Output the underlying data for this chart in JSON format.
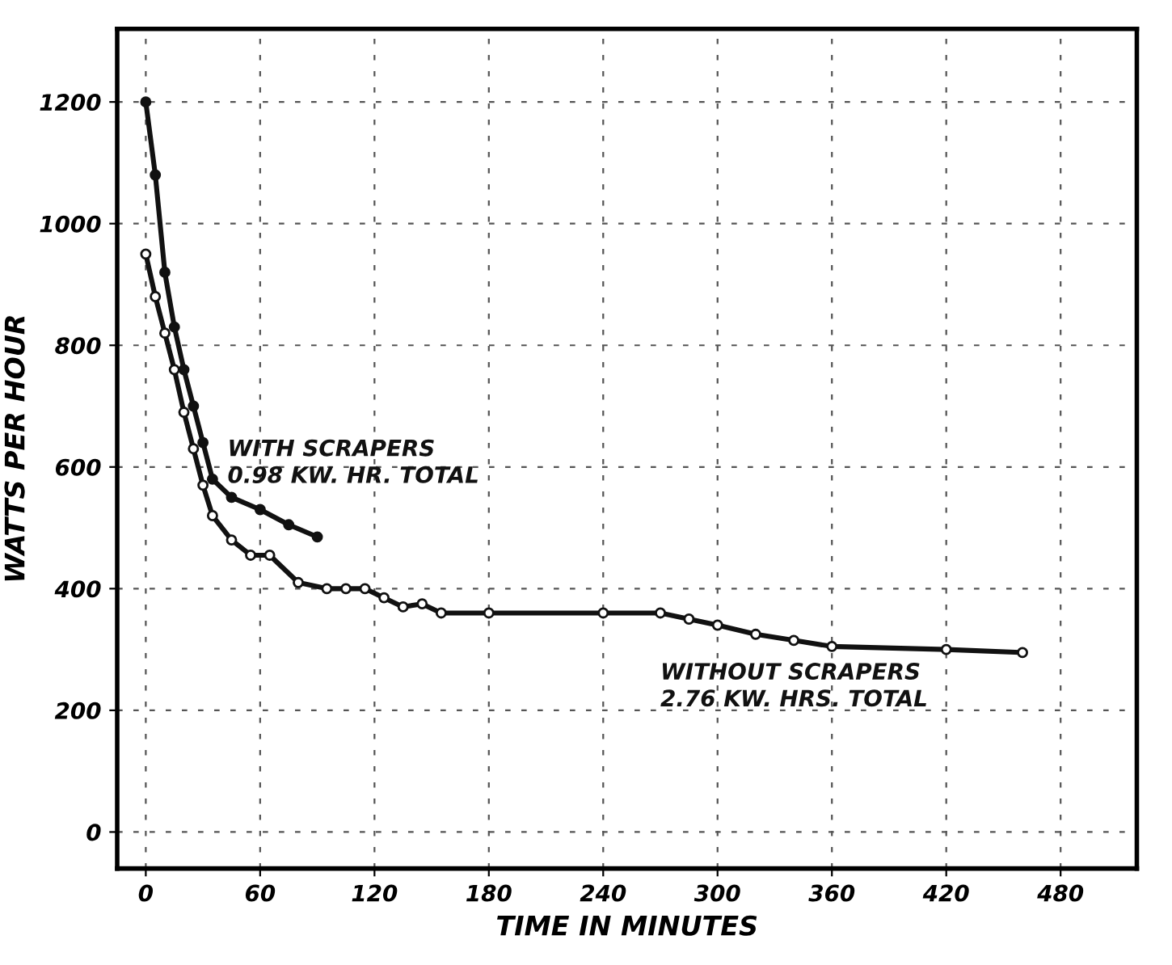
{
  "chart_data": {
    "type": "line",
    "xlabel": "TIME IN MINUTES",
    "ylabel": "WATTS PER HOUR",
    "xlim": [
      -15,
      520
    ],
    "ylim": [
      -60,
      1320
    ],
    "xticks": [
      0,
      60,
      120,
      180,
      240,
      300,
      360,
      420,
      480
    ],
    "yticks": [
      0,
      200,
      400,
      600,
      800,
      1000,
      1200
    ],
    "grid": true,
    "marker": "circle",
    "line_style": "solid",
    "legend": false,
    "series": [
      {
        "name": "WITH SCRAPERS",
        "color": "#111111",
        "x": [
          0,
          5,
          10,
          15,
          20,
          25,
          30,
          35,
          45,
          60,
          75,
          90
        ],
        "values": [
          1200,
          1080,
          920,
          830,
          760,
          700,
          640,
          580,
          550,
          530,
          505,
          485
        ]
      },
      {
        "name": "WITHOUT SCRAPERS",
        "color": "#111111",
        "x": [
          0,
          5,
          10,
          15,
          20,
          25,
          30,
          35,
          45,
          55,
          65,
          80,
          95,
          105,
          115,
          125,
          135,
          145,
          155,
          180,
          240,
          270,
          285,
          300,
          320,
          340,
          360,
          420,
          460
        ],
        "values": [
          950,
          880,
          820,
          760,
          690,
          630,
          570,
          520,
          480,
          455,
          455,
          410,
          400,
          400,
          400,
          385,
          370,
          375,
          360,
          360,
          360,
          360,
          350,
          340,
          325,
          315,
          305,
          300,
          295
        ]
      }
    ],
    "annotations": [
      "0.98 KW. HR. TOTAL",
      "2.76 KW. HRS. TOTAL"
    ]
  }
}
